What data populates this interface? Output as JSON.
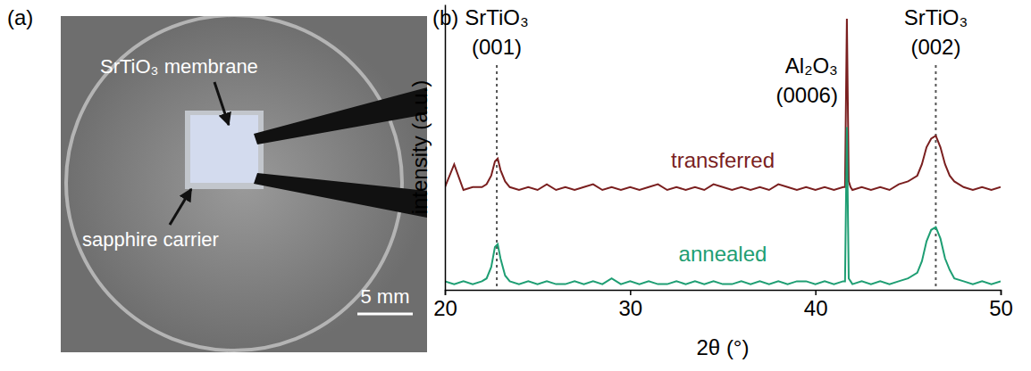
{
  "photo": {
    "panel_label": "(a)",
    "labels": [
      "SrTiO₃ membrane",
      "sapphire carrier"
    ],
    "scale_bar": "5 mm"
  },
  "chart_data": {
    "type": "line",
    "panel_label": "(b)",
    "xlabel": "2θ (°)",
    "ylabel": "intensity (a.u.)",
    "xlim": [
      20,
      50
    ],
    "xticks": [
      20,
      30,
      40,
      50
    ],
    "ylim": [
      0,
      100
    ],
    "yticks": [],
    "tick_labels": "x",
    "x": [
      20,
      20.5,
      21,
      21.5,
      22,
      22.25,
      22.5,
      22.7,
      22.85,
      23,
      23.25,
      23.5,
      24,
      24.5,
      25,
      25.5,
      26,
      26.5,
      27,
      27.5,
      28,
      28.5,
      29,
      29.5,
      30,
      30.5,
      31,
      31.5,
      32,
      32.5,
      33,
      33.5,
      34,
      34.5,
      35,
      35.5,
      36,
      36.5,
      37,
      37.5,
      38,
      38.5,
      39,
      39.5,
      40,
      40.5,
      41,
      41.5,
      41.6,
      41.7,
      41.8,
      41.9,
      42,
      42.5,
      43,
      43.5,
      44,
      44.5,
      45,
      45.5,
      45.75,
      46,
      46.25,
      46.5,
      46.75,
      47,
      47.25,
      47.5,
      48,
      48.5,
      49,
      49.5,
      50
    ],
    "series": [
      {
        "name": "transferred",
        "color": "#7a1f1f",
        "values": [
          36,
          44,
          35,
          36,
          36,
          37,
          40,
          45,
          46,
          42,
          38,
          36,
          35,
          36,
          35,
          37,
          35,
          36,
          35,
          36,
          37,
          35,
          36,
          35,
          36,
          35,
          36,
          37,
          35,
          36,
          35,
          36,
          35,
          37,
          36,
          35,
          36,
          35,
          36,
          35,
          37,
          36,
          35,
          36,
          35,
          36,
          35,
          36,
          36,
          95,
          38,
          36,
          35,
          36,
          35,
          36,
          35,
          37,
          38,
          40,
          44,
          50,
          53,
          54,
          50,
          44,
          40,
          38,
          36,
          35,
          36,
          35,
          36
        ]
      },
      {
        "name": "annealed",
        "color": "#1e9e73",
        "values": [
          3,
          2,
          3,
          2,
          3,
          4,
          8,
          15,
          16,
          11,
          5,
          3,
          2,
          3,
          2,
          3,
          2,
          2,
          3,
          2,
          3,
          2,
          4,
          2,
          3,
          2,
          3,
          2,
          2,
          3,
          2,
          3,
          2,
          3,
          2,
          2,
          3,
          2,
          3,
          2,
          3,
          2,
          3,
          3,
          2,
          3,
          2,
          3,
          3,
          57,
          4,
          3,
          2,
          3,
          2,
          3,
          2,
          3,
          4,
          6,
          10,
          17,
          21,
          22,
          18,
          11,
          7,
          4,
          3,
          2,
          3,
          2,
          3
        ]
      }
    ],
    "annotations": [
      {
        "text": "SrTiO₃ (001)",
        "x": 22.8,
        "line_style": "dashed"
      },
      {
        "text": "Al₂O₃ (0006)",
        "x": 41.7
      },
      {
        "text": "SrTiO₃ (002)",
        "x": 46.5,
        "line_style": "dashed"
      }
    ]
  }
}
